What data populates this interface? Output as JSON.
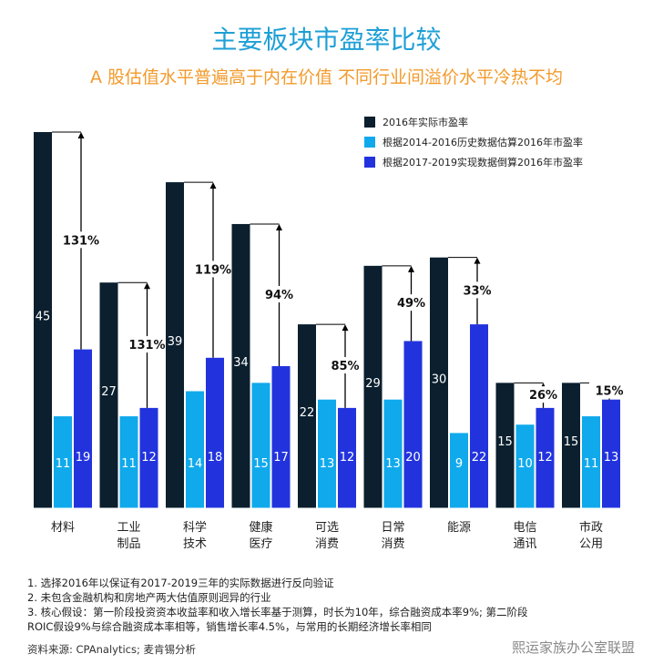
{
  "title": "主要板块市盈率比较",
  "subtitle": "A 股估值水平普遍高于内在价值 不同行业间溢价水平冷热不均",
  "chart_data": {
    "type": "bar",
    "categories": [
      "材料",
      "工业\n制品",
      "科学\n技术",
      "健康\n医疗",
      "可选\n消费",
      "日常\n消费",
      "能源",
      "电信\n通讯",
      "市政\n公用"
    ],
    "series": [
      {
        "name": "2016年实际市盈率",
        "color": "#0b1f2e",
        "values": [
          45,
          27,
          39,
          34,
          22,
          29,
          30,
          15,
          15
        ]
      },
      {
        "name": "根据2014-2016历史数据估算2016年市盈率",
        "color": "#10a9ec",
        "values": [
          11,
          11,
          14,
          15,
          13,
          13,
          9,
          10,
          11
        ]
      },
      {
        "name": "根据2017-2019实现数据倒算2016年市盈率",
        "color": "#2233dd",
        "values": [
          19,
          12,
          18,
          17,
          12,
          20,
          22,
          12,
          13
        ]
      }
    ],
    "premium_labels": [
      "131%",
      "131%",
      "119%",
      "94%",
      "85%",
      "49%",
      "33%",
      "26%",
      "15%"
    ],
    "legend": "top-right",
    "grid": false
  },
  "notes": [
    "1. 选择2016年以保证有2017-2019三年的实际数据进行反向验证",
    "2. 未包含金融机构和房地产两大估值原则迥异的行业",
    "3. 核心假设：第一阶段投资资本收益率和收入增长率基于测算，时长为10年，综合融资成本率9%; 第二阶段",
    "ROIC假设9%与综合融资成本率相等，销售增长率4.5%，与常用的长期经济增长率相同"
  ],
  "source": "资料来源: CPAnalytics; 麦肯锡分析",
  "watermark": "熙运家族办公室联盟"
}
